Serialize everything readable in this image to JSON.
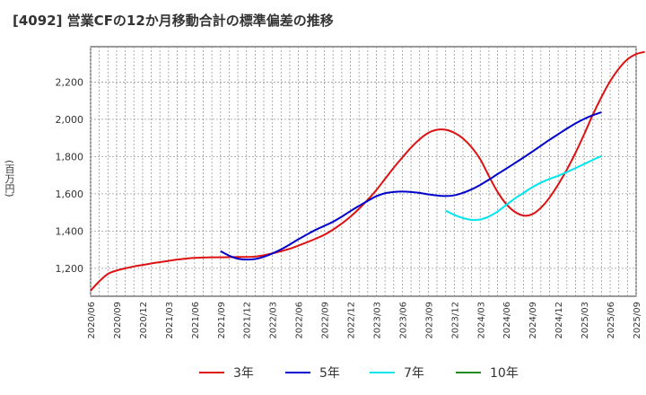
{
  "header": {
    "title": "[4092]  営業CFの12か月移動合計の標準偏差の推移"
  },
  "chart_data": {
    "type": "line",
    "title": "[4092]  営業CFの12か月移動合計の標準偏差の推移",
    "ylabel": "(百万円)",
    "xlabel": "",
    "ylim": [
      1050,
      2390
    ],
    "y_ticks": [
      1200,
      1400,
      1600,
      1800,
      2000,
      2200
    ],
    "y_tick_labels": [
      "1,200",
      "1,400",
      "1,600",
      "1,800",
      "2,000",
      "2,200"
    ],
    "x_tick_labels": [
      "2020/06",
      "2020/09",
      "2020/12",
      "2021/03",
      "2021/06",
      "2021/09",
      "2021/12",
      "2022/03",
      "2022/06",
      "2022/09",
      "2022/12",
      "2023/03",
      "2023/06",
      "2023/09",
      "2023/12",
      "2024/03",
      "2024/06",
      "2024/09",
      "2024/12",
      "2025/03",
      "2025/06",
      "2025/09"
    ],
    "grid": true,
    "legend_position": "bottom",
    "series": [
      {
        "name": "3年",
        "color": "#dd1111",
        "start_index": 0,
        "values": [
          1080,
          1130,
          1170,
          1188,
          1200,
          1210,
          1218,
          1226,
          1233,
          1240,
          1247,
          1252,
          1256,
          1258,
          1259,
          1259,
          1260,
          1261,
          1261,
          1263,
          1270,
          1280,
          1292,
          1305,
          1322,
          1340,
          1359,
          1380,
          1408,
          1440,
          1477,
          1520,
          1568,
          1620,
          1680,
          1740,
          1795,
          1848,
          1893,
          1927,
          1944,
          1944,
          1928,
          1897,
          1850,
          1785,
          1695,
          1610,
          1545,
          1503,
          1483,
          1490,
          1525,
          1580,
          1650,
          1730,
          1820,
          1920,
          2025,
          2120,
          2205,
          2272,
          2322,
          2350,
          2362
        ]
      },
      {
        "name": "5年",
        "color": "#0000cc",
        "start_index": 15,
        "values": [
          1292,
          1268,
          1252,
          1247,
          1250,
          1262,
          1280,
          1302,
          1328,
          1356,
          1382,
          1407,
          1428,
          1450,
          1477,
          1507,
          1535,
          1562,
          1587,
          1603,
          1610,
          1612,
          1610,
          1605,
          1597,
          1591,
          1588,
          1592,
          1605,
          1624,
          1648,
          1676,
          1706,
          1735,
          1765,
          1795,
          1826,
          1858,
          1890,
          1920,
          1950,
          1978,
          2002,
          2022,
          2038
        ]
      },
      {
        "name": "7年",
        "color": "#00e5ee",
        "start_index": 41,
        "values": [
          1510,
          1487,
          1470,
          1460,
          1462,
          1478,
          1505,
          1540,
          1575,
          1605,
          1635,
          1660,
          1680,
          1697,
          1717,
          1738,
          1760,
          1782,
          1803
        ]
      },
      {
        "name": "10年",
        "color": "#228b22",
        "start_index": 0,
        "values": []
      }
    ]
  }
}
